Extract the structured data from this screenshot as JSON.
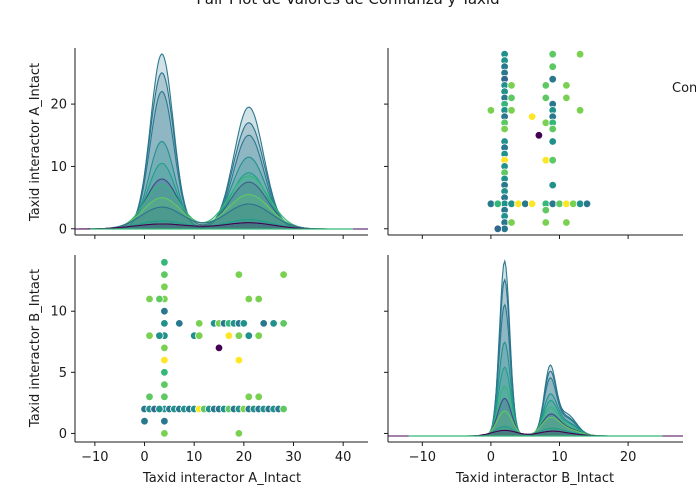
{
  "figure": {
    "title": "Pair Plot de Valores de Confianza y Taxid",
    "legend_title": "Con"
  },
  "chart_data": [
    {
      "panel": "A_vs_A",
      "type": "area",
      "kde_variable": "Taxid interactor A_Intact",
      "ylabel": "Taxid interactor A_Intact",
      "xlabel": "",
      "xlim": [
        -14,
        45
      ],
      "left_ylim": [
        -1,
        29
      ],
      "left_yticks": [
        "0",
        "10",
        "20"
      ],
      "left_ytick_values": [
        0,
        10,
        20
      ],
      "peak1_center": 3.5,
      "peak2_center": 21,
      "curves": [
        {
          "color": "#2b7a8c",
          "amp1": 28,
          "sd1": 2.3,
          "amp2": 19.5,
          "sd2": 3.0
        },
        {
          "color": "#2c728e",
          "amp1": 25,
          "sd1": 2.4,
          "amp2": 17,
          "sd2": 3.1
        },
        {
          "color": "#2a788e",
          "amp1": 22,
          "sd1": 2.4,
          "amp2": 15,
          "sd2": 3.1
        },
        {
          "color": "#21918c",
          "amp1": 14,
          "sd1": 2.6,
          "amp2": 11.5,
          "sd2": 3.4
        },
        {
          "color": "#1f9e89",
          "amp1": 10.5,
          "sd1": 2.8,
          "amp2": 9,
          "sd2": 3.6
        },
        {
          "color": "#3e4a89",
          "amp1": 8,
          "sd1": 3.2,
          "amp2": 7.5,
          "sd2": 3.8
        },
        {
          "color": "#35b779",
          "amp1": 7,
          "sd1": 3.5,
          "amp2": 8.5,
          "sd2": 4.0
        },
        {
          "color": "#5ec962",
          "amp1": 5,
          "sd1": 3.8,
          "amp2": 5.5,
          "sd2": 4.2
        },
        {
          "color": "#2c728e",
          "amp1": 3.5,
          "sd1": 4.2,
          "amp2": 4,
          "sd2": 4.5
        },
        {
          "color": "#1f9e89",
          "amp1": 1.3,
          "sd1": 4.5,
          "amp2": 1.5,
          "sd2": 4.6
        },
        {
          "color": "#440154",
          "amp1": 0.8,
          "sd1": 5.5,
          "amp2": 1.0,
          "sd2": 5.0
        }
      ]
    },
    {
      "panel": "B_vs_A",
      "type": "scatter",
      "xlabel": "Taxid interactor B_Intact",
      "ylabel": "Taxid interactor A_Intact",
      "xlim": [
        -15,
        28
      ],
      "ylim": [
        -1,
        29
      ],
      "points": [
        [
          2,
          28,
          "#21918c"
        ],
        [
          2,
          27,
          "#21918c"
        ],
        [
          2,
          26,
          "#2a788e"
        ],
        [
          2,
          25,
          "#2a788e"
        ],
        [
          2,
          24,
          "#31688e"
        ],
        [
          2,
          23,
          "#21918c"
        ],
        [
          2,
          22,
          "#21918c"
        ],
        [
          2,
          21,
          "#2a788e"
        ],
        [
          2,
          20,
          "#35b779"
        ],
        [
          2,
          19,
          "#21918c"
        ],
        [
          2,
          18,
          "#2a788e"
        ],
        [
          2,
          17,
          "#5ec962"
        ],
        [
          2,
          16,
          "#7ad151"
        ],
        [
          2,
          14,
          "#21918c"
        ],
        [
          2,
          13,
          "#2a788e"
        ],
        [
          2,
          12,
          "#21918c"
        ],
        [
          2,
          11,
          "#fde725"
        ],
        [
          2,
          10,
          "#21918c"
        ],
        [
          2,
          9,
          "#5ec962"
        ],
        [
          2,
          8,
          "#21918c"
        ],
        [
          2,
          7,
          "#2a788e"
        ],
        [
          2,
          6,
          "#21918c"
        ],
        [
          2,
          5,
          "#2a788e"
        ],
        [
          2,
          4,
          "#21918c"
        ],
        [
          2,
          3,
          "#2a788e"
        ],
        [
          2,
          2,
          "#21918c"
        ],
        [
          2,
          1,
          "#2a788e"
        ],
        [
          2,
          0,
          "#2a788e"
        ],
        [
          1,
          0,
          "#31688e"
        ],
        [
          3,
          1,
          "#7ad151"
        ],
        [
          3,
          23,
          "#7ad151"
        ],
        [
          3,
          21,
          "#5ec962"
        ],
        [
          3,
          19,
          "#7ad151"
        ],
        [
          0,
          19,
          "#7ad151"
        ],
        [
          0,
          4,
          "#2a788e"
        ],
        [
          1,
          4,
          "#35b779"
        ],
        [
          3,
          4,
          "#21918c"
        ],
        [
          4,
          4,
          "#fde725"
        ],
        [
          5,
          4,
          "#2a788e"
        ],
        [
          6,
          4,
          "#fde725"
        ],
        [
          8,
          4,
          "#35b779"
        ],
        [
          9,
          4,
          "#2a788e"
        ],
        [
          10,
          4,
          "#5ec962"
        ],
        [
          11,
          4,
          "#fde725"
        ],
        [
          12,
          4,
          "#7ad151"
        ],
        [
          13,
          4,
          "#21918c"
        ],
        [
          14,
          4,
          "#2a788e"
        ],
        [
          6,
          18,
          "#fde725"
        ],
        [
          7,
          15,
          "#440154"
        ],
        [
          8,
          21,
          "#5ec962"
        ],
        [
          8,
          23,
          "#5ec962"
        ],
        [
          8,
          17,
          "#7ad151"
        ],
        [
          8,
          11,
          "#fde725"
        ],
        [
          8,
          3,
          "#5ec962"
        ],
        [
          8,
          1,
          "#7ad151"
        ],
        [
          9,
          28,
          "#5ec962"
        ],
        [
          9,
          26,
          "#5ec962"
        ],
        [
          9,
          24,
          "#2a788e"
        ],
        [
          9,
          20,
          "#2a788e"
        ],
        [
          9,
          19,
          "#21918c"
        ],
        [
          9,
          18,
          "#2a788e"
        ],
        [
          9,
          17,
          "#35b779"
        ],
        [
          9,
          16,
          "#5ec962"
        ],
        [
          9,
          14,
          "#21918c"
        ],
        [
          9,
          11,
          "#5ec962"
        ],
        [
          9,
          7,
          "#21918c"
        ],
        [
          11,
          23,
          "#7ad151"
        ],
        [
          11,
          21,
          "#7ad151"
        ],
        [
          11,
          1,
          "#7ad151"
        ],
        [
          13,
          28,
          "#7ad151"
        ],
        [
          13,
          19,
          "#7ad151"
        ]
      ]
    },
    {
      "panel": "A_vs_B",
      "type": "scatter",
      "xlabel": "Taxid interactor A_Intact",
      "ylabel": "Taxid interactor B_Intact",
      "xlim": [
        -14,
        45
      ],
      "ylim": [
        -0.7,
        14.6
      ],
      "xticks": [
        "−10",
        "0",
        "10",
        "20",
        "30",
        "40"
      ],
      "xtick_values": [
        -10,
        0,
        10,
        20,
        30,
        40
      ],
      "yticks": [
        "0",
        "5",
        "10"
      ],
      "ytick_values": [
        0,
        5,
        10
      ],
      "points": [
        [
          4,
          14,
          "#35b779"
        ],
        [
          4,
          13,
          "#5ec962"
        ],
        [
          4,
          12,
          "#7ad151"
        ],
        [
          4,
          11,
          "#7ad151"
        ],
        [
          4,
          10,
          "#2a788e"
        ],
        [
          4,
          9,
          "#21918c"
        ],
        [
          4,
          8,
          "#21918c"
        ],
        [
          4,
          7,
          "#7ad151"
        ],
        [
          4,
          6,
          "#fde725"
        ],
        [
          4,
          5,
          "#35b779"
        ],
        [
          4,
          4,
          "#5ec962"
        ],
        [
          4,
          3,
          "#5ec962"
        ],
        [
          4,
          2,
          "#21918c"
        ],
        [
          4,
          1,
          "#2a788e"
        ],
        [
          4,
          0,
          "#7ad151"
        ],
        [
          1,
          11,
          "#7ad151"
        ],
        [
          3,
          11,
          "#5ec962"
        ],
        [
          1,
          8,
          "#7ad151"
        ],
        [
          3,
          8,
          "#21918c"
        ],
        [
          1,
          3,
          "#5ec962"
        ],
        [
          0,
          1,
          "#2a788e"
        ],
        [
          0,
          2,
          "#2a788e"
        ],
        [
          1,
          2,
          "#21918c"
        ],
        [
          2,
          2,
          "#31688e"
        ],
        [
          3,
          2,
          "#21918c"
        ],
        [
          5,
          2,
          "#2a788e"
        ],
        [
          6,
          2,
          "#21918c"
        ],
        [
          7,
          2,
          "#2a788e"
        ],
        [
          8,
          2,
          "#21918c"
        ],
        [
          9,
          2,
          "#2a788e"
        ],
        [
          10,
          2,
          "#21918c"
        ],
        [
          11,
          2,
          "#fde725"
        ],
        [
          12,
          2,
          "#5ec962"
        ],
        [
          13,
          2,
          "#21918c"
        ],
        [
          14,
          2,
          "#2a788e"
        ],
        [
          15,
          2,
          "#2a788e"
        ],
        [
          16,
          2,
          "#21918c"
        ],
        [
          17,
          2,
          "#5ec962"
        ],
        [
          18,
          2,
          "#2a788e"
        ],
        [
          19,
          2,
          "#21918c"
        ],
        [
          20,
          2,
          "#7ad151"
        ],
        [
          21,
          2,
          "#2a788e"
        ],
        [
          22,
          2,
          "#21918c"
        ],
        [
          23,
          2,
          "#2a788e"
        ],
        [
          24,
          2,
          "#21918c"
        ],
        [
          25,
          2,
          "#2a788e"
        ],
        [
          26,
          2,
          "#21918c"
        ],
        [
          27,
          2,
          "#2a788e"
        ],
        [
          28,
          2,
          "#5ec962"
        ],
        [
          7,
          9,
          "#2a788e"
        ],
        [
          10,
          8,
          "#21918c"
        ],
        [
          11,
          9,
          "#7ad151"
        ],
        [
          11,
          8,
          "#7ad151"
        ],
        [
          14,
          9,
          "#21918c"
        ],
        [
          15,
          9,
          "#7ad151"
        ],
        [
          15,
          7,
          "#440154"
        ],
        [
          16,
          9,
          "#2a788e"
        ],
        [
          17,
          9,
          "#35b779"
        ],
        [
          17,
          8,
          "#fde725"
        ],
        [
          18,
          9,
          "#21918c"
        ],
        [
          19,
          9,
          "#2a788e"
        ],
        [
          19,
          8,
          "#7ad151"
        ],
        [
          19,
          6,
          "#fde725"
        ],
        [
          19,
          13,
          "#7ad151"
        ],
        [
          20,
          9,
          "#21918c"
        ],
        [
          21,
          8,
          "#21918c"
        ],
        [
          21,
          11,
          "#7ad151"
        ],
        [
          21,
          3,
          "#7ad151"
        ],
        [
          23,
          11,
          "#7ad151"
        ],
        [
          23,
          8,
          "#7ad151"
        ],
        [
          23,
          3,
          "#7ad151"
        ],
        [
          24,
          9,
          "#2a788e"
        ],
        [
          26,
          9,
          "#21918c"
        ],
        [
          28,
          9,
          "#5ec962"
        ],
        [
          28,
          13,
          "#7ad151"
        ],
        [
          19,
          0,
          "#7ad151"
        ]
      ]
    },
    {
      "panel": "B_vs_B",
      "type": "area",
      "kde_variable": "Taxid interactor B_Intact",
      "xlabel": "Taxid interactor B_Intact",
      "ylabel": "",
      "xlim": [
        -15,
        28
      ],
      "xticks": [
        "−10",
        "0",
        "10",
        "20"
      ],
      "xtick_values": [
        -10,
        0,
        10,
        20
      ],
      "peak1_center": 2,
      "peak2_center": 8.6,
      "shoulder_center": 11,
      "curves": [
        {
          "color": "#2b7a8c",
          "amp1": 28,
          "sd1": 0.75,
          "amp2": 10.5,
          "sd2": 0.85,
          "amp3": 3.5,
          "sd3": 1.4
        },
        {
          "color": "#2c728e",
          "amp1": 25,
          "sd1": 0.78,
          "amp2": 9.5,
          "sd2": 0.9,
          "amp3": 3.0,
          "sd3": 1.5
        },
        {
          "color": "#2a788e",
          "amp1": 21,
          "sd1": 0.8,
          "amp2": 8.5,
          "sd2": 0.9,
          "amp3": 2.8,
          "sd3": 1.5
        },
        {
          "color": "#21918c",
          "amp1": 15,
          "sd1": 0.85,
          "amp2": 6,
          "sd2": 1.0,
          "amp3": 2.2,
          "sd3": 1.6
        },
        {
          "color": "#1f9e89",
          "amp1": 11,
          "sd1": 0.9,
          "amp2": 5,
          "sd2": 1.0,
          "amp3": 2.0,
          "sd3": 1.6
        },
        {
          "color": "#35b779",
          "amp1": 8,
          "sd1": 0.95,
          "amp2": 4,
          "sd2": 1.1,
          "amp3": 1.5,
          "sd3": 1.7
        },
        {
          "color": "#3e4a89",
          "amp1": 6,
          "sd1": 1.0,
          "amp2": 3,
          "sd2": 1.2,
          "amp3": 1.2,
          "sd3": 1.8
        },
        {
          "color": "#5ec962",
          "amp1": 4,
          "sd1": 1.1,
          "amp2": 2.5,
          "sd2": 1.3,
          "amp3": 1.0,
          "sd3": 1.9
        },
        {
          "color": "#1f9e89",
          "amp1": 1.5,
          "sd1": 1.4,
          "amp2": 1.0,
          "sd2": 1.5,
          "amp3": 0.5,
          "sd3": 2.0
        },
        {
          "color": "#440154",
          "amp1": 0.9,
          "sd1": 1.8,
          "amp2": 0.6,
          "sd2": 1.8,
          "amp3": 0.3,
          "sd3": 2.2
        }
      ]
    }
  ]
}
